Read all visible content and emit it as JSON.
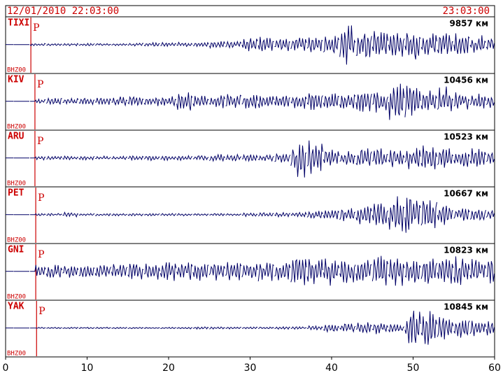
{
  "chart_data": {
    "type": "seismogram",
    "start_time": "12/01/2010 22:03:00",
    "end_time": "23:03:00",
    "xlim": [
      0,
      60
    ],
    "xticks": [
      0,
      10,
      20,
      30,
      40,
      50,
      60
    ],
    "x": [
      0,
      2,
      4,
      6,
      8,
      10,
      12,
      14,
      16,
      18,
      20,
      22,
      24,
      26,
      28,
      30,
      32,
      34,
      36,
      38,
      40,
      42,
      44,
      46,
      48,
      50,
      52,
      54,
      56,
      58,
      60
    ],
    "trace_color": "#000066",
    "marker_color": "#cc0000",
    "traces": [
      {
        "name": "TIXI",
        "distance": "9857 км",
        "channel": "BHZ00",
        "phase": "P",
        "p_time": 3.1,
        "values": [
          0,
          0,
          0.05,
          0.05,
          0.05,
          0.05,
          0.05,
          0.05,
          0.06,
          0.08,
          0.08,
          0.1,
          0.1,
          0.15,
          0.2,
          0.3,
          0.35,
          0.3,
          0.3,
          0.35,
          0.4,
          0.8,
          0.7,
          0.6,
          0.7,
          0.7,
          0.5,
          0.6,
          0.5,
          0.4,
          0.3
        ]
      },
      {
        "name": "KIV",
        "distance": "10456 км",
        "channel": "BHZ00",
        "phase": "P",
        "p_time": 3.6,
        "values": [
          0,
          0,
          0.1,
          0.15,
          0.15,
          0.15,
          0.15,
          0.2,
          0.2,
          0.2,
          0.2,
          0.45,
          0.3,
          0.3,
          0.3,
          0.3,
          0.3,
          0.3,
          0.3,
          0.4,
          0.4,
          0.4,
          0.5,
          0.5,
          0.8,
          0.8,
          0.6,
          0.6,
          0.4,
          0.4,
          0.35
        ]
      },
      {
        "name": "ARU",
        "distance": "10523 км",
        "channel": "BHZ00",
        "phase": "P",
        "p_time": 3.6,
        "values": [
          0,
          0,
          0.08,
          0.08,
          0.08,
          0.08,
          0.08,
          0.08,
          0.1,
          0.1,
          0.1,
          0.1,
          0.1,
          0.15,
          0.15,
          0.15,
          0.15,
          0.2,
          0.8,
          0.7,
          0.4,
          0.3,
          0.4,
          0.4,
          0.4,
          0.5,
          0.5,
          0.5,
          0.4,
          0.4,
          0.3
        ]
      },
      {
        "name": "PET",
        "distance": "10667 км",
        "channel": "BHZ00",
        "phase": "P",
        "p_time": 3.7,
        "values": [
          0,
          0,
          0.05,
          0.05,
          0.1,
          0.05,
          0.05,
          0.05,
          0.05,
          0.05,
          0.05,
          0.05,
          0.05,
          0.05,
          0.05,
          0.08,
          0.08,
          0.1,
          0.1,
          0.15,
          0.2,
          0.3,
          0.4,
          0.5,
          0.8,
          0.8,
          0.7,
          0.5,
          0.3,
          0.3,
          0.2
        ]
      },
      {
        "name": "GNI",
        "distance": "10823 км",
        "channel": "BHZ00",
        "phase": "P",
        "p_time": 3.7,
        "values": [
          0,
          0,
          0.3,
          0.3,
          0.25,
          0.3,
          0.3,
          0.3,
          0.4,
          0.4,
          0.4,
          0.4,
          0.4,
          0.4,
          0.4,
          0.4,
          0.5,
          0.4,
          0.6,
          0.6,
          0.6,
          0.5,
          0.5,
          0.7,
          0.6,
          0.6,
          0.6,
          0.6,
          0.6,
          0.5,
          0.5
        ]
      },
      {
        "name": "YAK",
        "distance": "10845 км",
        "channel": "BHZ00",
        "phase": "P",
        "p_time": 3.8,
        "values": [
          0,
          0,
          0.03,
          0.03,
          0.03,
          0.03,
          0.03,
          0.03,
          0.03,
          0.03,
          0.03,
          0.05,
          0.05,
          0.05,
          0.05,
          0.05,
          0.05,
          0.05,
          0.05,
          0.1,
          0.15,
          0.2,
          0.25,
          0.25,
          0.2,
          0.8,
          0.7,
          0.5,
          0.4,
          0.4,
          0.35
        ]
      }
    ]
  }
}
